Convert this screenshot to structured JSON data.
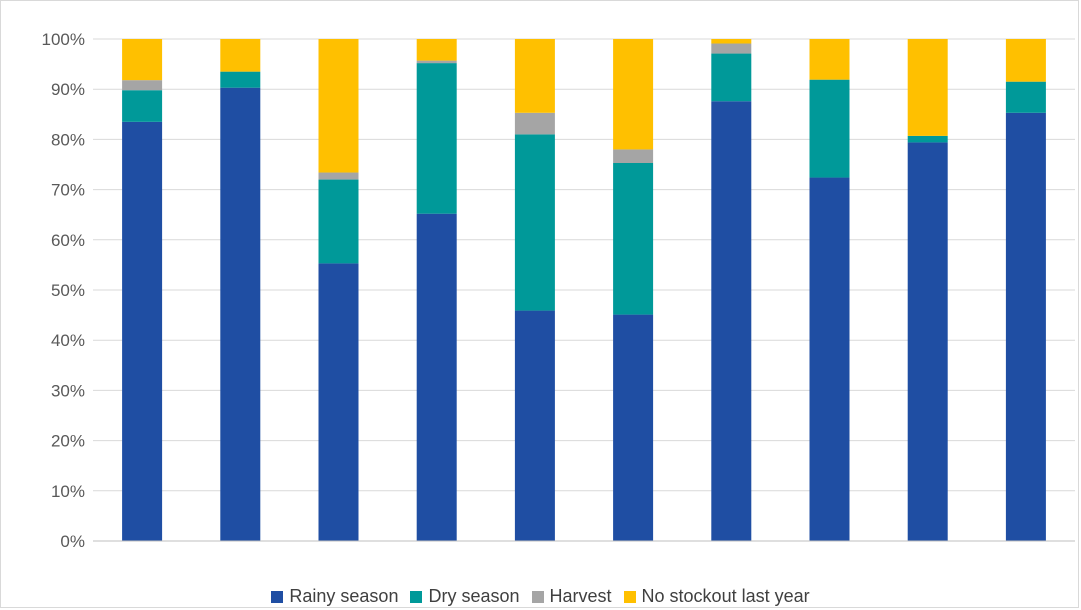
{
  "chart_data": {
    "type": "bar",
    "stacked": true,
    "percent": true,
    "categories": [
      "",
      "",
      "",
      "",
      "",
      "",
      "",
      "",
      "",
      ""
    ],
    "series": [
      {
        "name": "Rainy season",
        "color": "#1f4ea3",
        "values": [
          83.5,
          90.3,
          55.3,
          65.2,
          45.9,
          45.1,
          87.6,
          72.4,
          79.4,
          85.3
        ]
      },
      {
        "name": "Dry season",
        "color": "#009999",
        "values": [
          6.3,
          3.2,
          16.7,
          30.0,
          35.1,
          30.2,
          9.5,
          19.5,
          1.3,
          6.2
        ]
      },
      {
        "name": "Harvest",
        "color": "#a5a5a5",
        "values": [
          2.0,
          0.0,
          1.4,
          0.5,
          4.3,
          2.7,
          2.0,
          0.0,
          0.0,
          0.0
        ]
      },
      {
        "name": "No stockout last year",
        "color": "#ffc000",
        "values": [
          8.2,
          6.5,
          26.6,
          4.3,
          14.7,
          22.0,
          0.9,
          8.1,
          19.3,
          8.5
        ]
      }
    ],
    "ylim": [
      0,
      100
    ],
    "yticks": [
      "0%",
      "10%",
      "20%",
      "30%",
      "40%",
      "50%",
      "60%",
      "70%",
      "80%",
      "90%",
      "100%"
    ],
    "xlabel": "",
    "ylabel": "",
    "title": "",
    "grid": true,
    "legend_position": "bottom"
  },
  "colors": {
    "gridline": "#d9d9d9",
    "axis": "#bfbfbf",
    "tick_text": "#595959"
  }
}
